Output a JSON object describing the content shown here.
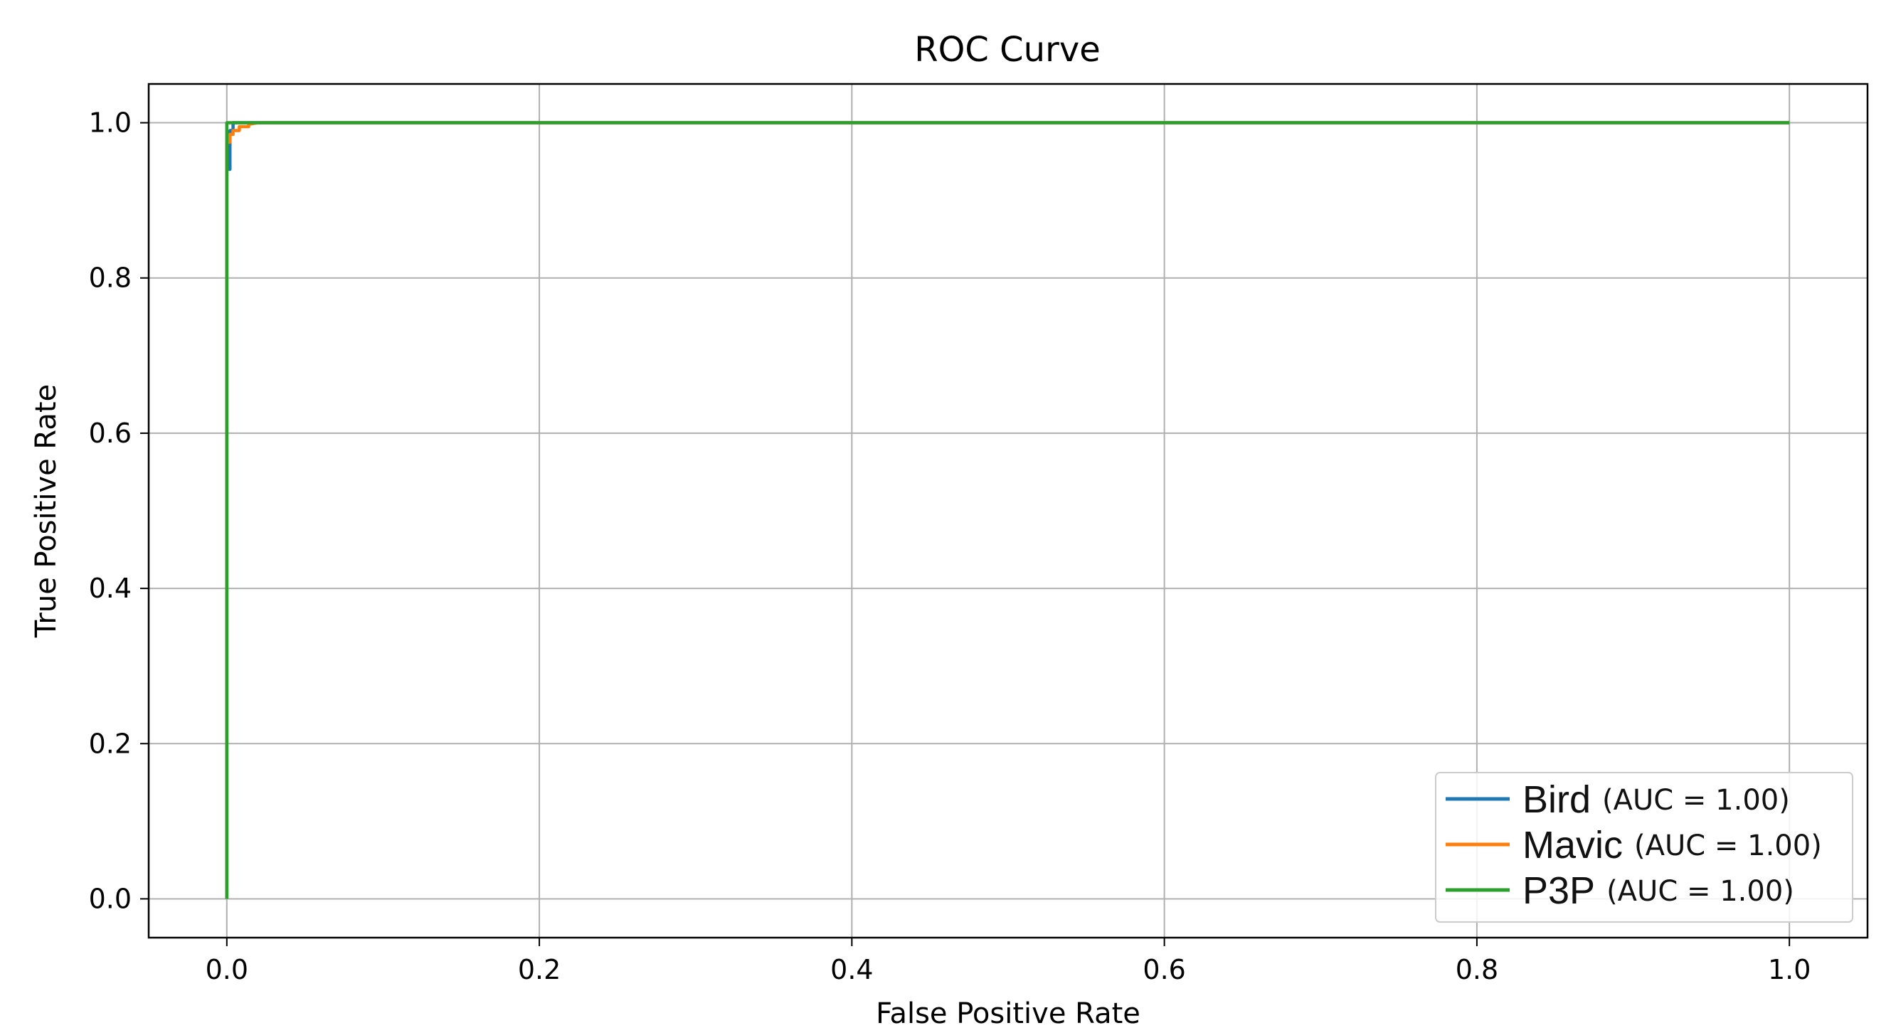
{
  "chart_data": {
    "type": "line",
    "title": "ROC Curve",
    "xlabel": "False Positive Rate",
    "ylabel": "True Positive Rate",
    "xlim": [
      -0.05,
      1.05
    ],
    "ylim": [
      -0.05,
      1.05
    ],
    "xticks": [
      0.0,
      0.2,
      0.4,
      0.6,
      0.8,
      1.0
    ],
    "xtick_labels": [
      "0.0",
      "0.2",
      "0.4",
      "0.6",
      "0.8",
      "1.0"
    ],
    "yticks": [
      0.0,
      0.2,
      0.4,
      0.6,
      0.8,
      1.0
    ],
    "ytick_labels": [
      "0.0",
      "0.2",
      "0.4",
      "0.6",
      "0.8",
      "1.0"
    ],
    "grid": true,
    "legend_position": "lower-right",
    "series": [
      {
        "name": "Bird",
        "auc_label": "(AUC = 1.00)",
        "color": "#1f77b4",
        "x": [
          0.0,
          0.0,
          0.0,
          0.002,
          0.002,
          0.002,
          0.004,
          0.004,
          1.0
        ],
        "y": [
          0.0,
          0.94,
          0.94,
          0.94,
          0.97,
          0.99,
          0.99,
          1.0,
          1.0
        ]
      },
      {
        "name": "Mavic",
        "auc_label": "(AUC = 1.00)",
        "color": "#ff7f0e",
        "x": [
          0.0,
          0.0,
          0.002,
          0.002,
          0.004,
          0.004,
          0.008,
          0.008,
          0.014,
          0.014,
          0.02,
          1.0
        ],
        "y": [
          0.0,
          0.975,
          0.975,
          0.985,
          0.985,
          0.99,
          0.99,
          0.995,
          0.995,
          0.998,
          1.0,
          1.0
        ]
      },
      {
        "name": "P3P",
        "auc_label": "(AUC = 1.00)",
        "color": "#2ca02c",
        "x": [
          0.0,
          0.0,
          0.0,
          1.0
        ],
        "y": [
          0.0,
          0.995,
          1.0,
          1.0
        ]
      }
    ]
  }
}
